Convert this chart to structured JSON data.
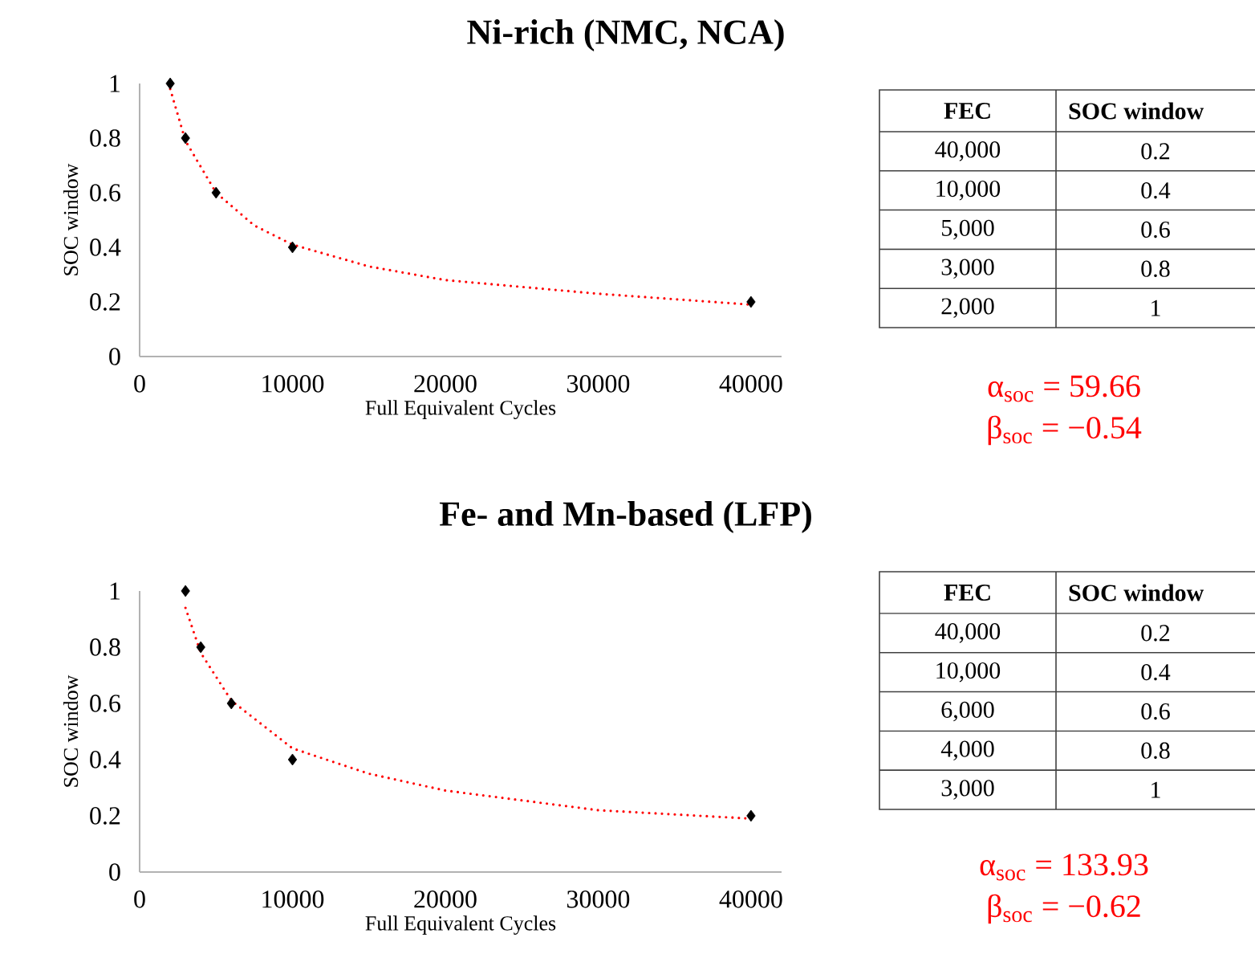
{
  "chart_data": [
    {
      "type": "scatter",
      "title": "Ni-rich (NMC, NCA)",
      "xlabel": "Full Equivalent Cycles",
      "ylabel": "SOC window",
      "xlim": [
        0,
        42000
      ],
      "ylim": [
        0,
        1
      ],
      "xticks": [
        0,
        10000,
        20000,
        30000,
        40000
      ],
      "yticks": [
        0,
        0.2,
        0.4,
        0.6,
        0.8,
        1
      ],
      "annotations": [
        "FEC",
        "SOC window",
        "40,000",
        "0.2",
        "10,000",
        "0.4",
        "5,000",
        "0.6",
        "3,000",
        "0.8",
        "2,000",
        "1",
        "α$_{soc}$ = 59.66",
        "β$_{soc}$ = −0.54"
      ],
      "series": [
        {
          "color": "#000000",
          "marker": "diamond",
          "x": [
            40000,
            10000,
            5000,
            3000,
            2000
          ],
          "values": [
            0.2,
            0.4,
            0.6,
            0.8,
            1
          ]
        },
        {
          "type": "line",
          "color": "#ff0000",
          "line_style": "dotted",
          "x": [
            2000,
            3000,
            5000,
            7500,
            10000,
            15000,
            20000,
            30000,
            40000
          ],
          "values": [
            0.98,
            0.79,
            0.6,
            0.48,
            0.41,
            0.33,
            0.28,
            0.23,
            0.19
          ]
        }
      ]
    },
    {
      "type": "scatter",
      "title": "Fe- and Mn-based (LFP)",
      "xlabel": "Full Equivalent Cycles",
      "ylabel": "SOC window",
      "xlim": [
        0,
        42000
      ],
      "ylim": [
        0,
        1
      ],
      "xticks": [
        0,
        10000,
        20000,
        30000,
        40000
      ],
      "yticks": [
        0,
        0.2,
        0.4,
        0.6,
        0.8,
        1
      ],
      "annotations": [
        "FEC",
        "SOC window",
        "40,000",
        "0.2",
        "10,000",
        "0.4",
        "6,000",
        "0.6",
        "4,000",
        "0.8",
        "3,000",
        "1",
        "α$_{soc}$ = 133.93",
        "β$_{soc}$ = −0.62"
      ],
      "series": [
        {
          "color": "#000000",
          "marker": "diamond",
          "x": [
            40000,
            10000,
            6000,
            4000,
            3000
          ],
          "values": [
            0.2,
            0.4,
            0.6,
            0.8,
            1
          ]
        },
        {
          "type": "line",
          "color": "#ff0000",
          "line_style": "dotted",
          "x": [
            3000,
            4000,
            6000,
            10000,
            15000,
            20000,
            30000,
            40000
          ],
          "values": [
            0.94,
            0.78,
            0.61,
            0.44,
            0.35,
            0.29,
            0.22,
            0.19
          ]
        }
      ]
    }
  ]
}
